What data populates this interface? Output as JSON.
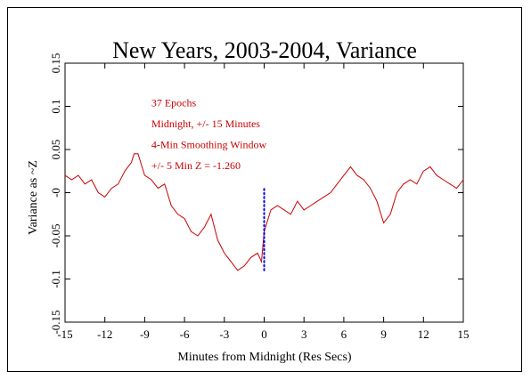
{
  "chart_data": {
    "type": "line",
    "title": "New Years, 2003-2004, Variance",
    "xlabel": "Minutes from Midnight (Res Secs)",
    "ylabel": "Variance as ~Z",
    "xlim": [
      -15,
      15
    ],
    "ylim": [
      -0.15,
      0.15
    ],
    "xticks": [
      "-15",
      "-12",
      "-9",
      "-6",
      "-3",
      "0",
      "3",
      "6",
      "9",
      "12",
      "15"
    ],
    "xtick_values": [
      -15,
      -12,
      -9,
      -6,
      -3,
      0,
      3,
      6,
      9,
      12,
      15
    ],
    "yticks": [
      "-0.15",
      "-0.1",
      "-0.05",
      "-0",
      "0.05",
      "0.1",
      "0.15"
    ],
    "ytick_values": [
      -0.15,
      -0.1,
      -0.05,
      0,
      0.05,
      0.1,
      0.15
    ],
    "grid": false,
    "annotations": [
      "37 Epochs",
      "Midnight, +/- 15 Minutes",
      "4-Min Smoothing Window",
      "+/- 5 Min Z = -1.260"
    ],
    "series": [
      {
        "color": "#cc0000",
        "x": [
          -15,
          -14.5,
          -14,
          -13.5,
          -13,
          -12.5,
          -12,
          -11.5,
          -11,
          -10.5,
          -10,
          -9.8,
          -9.5,
          -9,
          -8.5,
          -8,
          -7.5,
          -7,
          -6.5,
          -6,
          -5.5,
          -5,
          -4.5,
          -4,
          -3.5,
          -3,
          -2.5,
          -2,
          -1.5,
          -1,
          -0.5,
          -0.2,
          0,
          0.5,
          1,
          1.5,
          2,
          2.5,
          3,
          3.5,
          4,
          4.5,
          5,
          5.5,
          6,
          6.5,
          7,
          7.5,
          8,
          8.5,
          9,
          9.5,
          10,
          10.5,
          11,
          11.5,
          12,
          12.5,
          13,
          13.5,
          14,
          14.5,
          15
        ],
        "values": [
          0.02,
          0.015,
          0.02,
          0.01,
          0.015,
          0.0,
          -0.005,
          0.005,
          0.01,
          0.025,
          0.035,
          0.045,
          0.045,
          0.02,
          0.015,
          0.005,
          0.01,
          -0.015,
          -0.025,
          -0.03,
          -0.045,
          -0.05,
          -0.04,
          -0.025,
          -0.055,
          -0.07,
          -0.08,
          -0.09,
          -0.085,
          -0.075,
          -0.07,
          -0.08,
          -0.045,
          -0.02,
          -0.015,
          -0.02,
          -0.025,
          -0.01,
          -0.02,
          -0.015,
          -0.01,
          -0.005,
          0.0,
          0.01,
          0.02,
          0.03,
          0.02,
          0.015,
          0.005,
          -0.01,
          -0.035,
          -0.025,
          0.0,
          0.01,
          0.015,
          0.01,
          0.025,
          0.03,
          0.02,
          0.015,
          0.01,
          0.005,
          0.015
        ]
      },
      {
        "color": "#0000dd",
        "style": "dotted",
        "x": [
          0,
          0
        ],
        "values": [
          -0.09,
          0.005
        ]
      }
    ]
  }
}
